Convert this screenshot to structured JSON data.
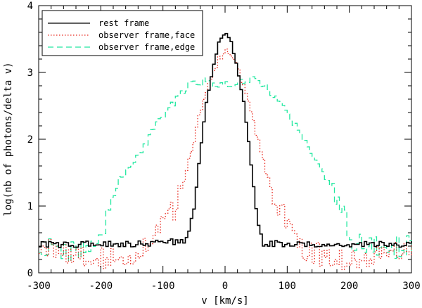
{
  "chart_data": {
    "type": "line",
    "title": "",
    "xlabel": "v [km/s]",
    "ylabel": "log(nb of photons/delta v)",
    "xlim": [
      -300,
      300
    ],
    "ylim": [
      0,
      4
    ],
    "x_ticks": [
      -300,
      -200,
      -100,
      0,
      100,
      200,
      300
    ],
    "y_ticks": [
      0,
      1,
      2,
      3,
      4
    ],
    "x_tick_labels": [
      "-300",
      "-200",
      "-100",
      "0",
      "100",
      "200",
      "300"
    ],
    "y_tick_labels": [
      "0",
      "1",
      "2",
      "3",
      "4"
    ],
    "legend_position": "top-left",
    "step_width": 4,
    "series": [
      {
        "name": "rest frame",
        "color": "#000000",
        "style": "solid",
        "x": [
          -300,
          -200,
          -100,
          -60,
          -50,
          -40,
          -30,
          -20,
          -10,
          0,
          10,
          20,
          30,
          40,
          50,
          60,
          100,
          200,
          300
        ],
        "values": [
          0.42,
          0.43,
          0.44,
          0.5,
          0.95,
          1.8,
          2.55,
          3.05,
          3.45,
          3.6,
          3.45,
          3.05,
          2.55,
          1.8,
          0.95,
          0.45,
          0.42,
          0.42,
          0.43
        ]
      },
      {
        "name": "observer frame,face",
        "color": "#e8281e",
        "style": "dotted",
        "x": [
          -300,
          -250,
          -200,
          -160,
          -130,
          -110,
          -100,
          -80,
          -70,
          -60,
          -50,
          -40,
          -30,
          -20,
          -10,
          0,
          10,
          20,
          30,
          40,
          50,
          60,
          70,
          80,
          100,
          110,
          130,
          160,
          200,
          250,
          300
        ],
        "values": [
          0.38,
          0.3,
          0.2,
          0.25,
          0.35,
          0.55,
          0.8,
          0.95,
          1.3,
          1.6,
          2.0,
          2.4,
          2.75,
          3.0,
          3.2,
          3.33,
          3.25,
          3.05,
          2.8,
          2.5,
          2.1,
          1.75,
          1.4,
          1.1,
          0.8,
          0.55,
          0.35,
          0.25,
          0.2,
          0.3,
          0.38
        ]
      },
      {
        "name": "observer frame,edge",
        "color": "#22e8a0",
        "style": "dashed",
        "x": [
          -300,
          -250,
          -200,
          -190,
          -180,
          -170,
          -150,
          -130,
          -110,
          -90,
          -70,
          -55,
          -45,
          -30,
          0,
          30,
          45,
          55,
          70,
          90,
          110,
          130,
          150,
          170,
          190,
          200,
          210,
          250,
          300
        ],
        "values": [
          0.38,
          0.32,
          0.4,
          0.8,
          1.15,
          1.4,
          1.65,
          1.9,
          2.2,
          2.45,
          2.7,
          2.85,
          2.87,
          2.85,
          2.83,
          2.86,
          2.9,
          2.87,
          2.75,
          2.55,
          2.25,
          1.95,
          1.6,
          1.25,
          0.9,
          0.6,
          0.42,
          0.35,
          0.4
        ]
      }
    ]
  }
}
